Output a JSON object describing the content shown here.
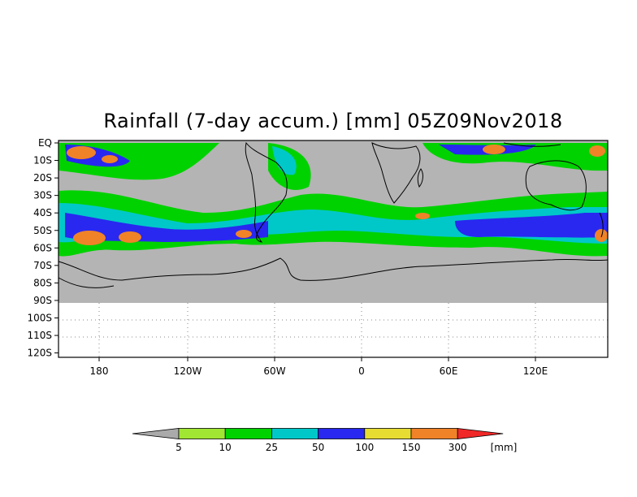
{
  "title": "Rainfall (7-day accum.) [mm] 05Z09Nov2018",
  "lat_labels": [
    "EQ",
    "10S",
    "20S",
    "30S",
    "40S",
    "50S",
    "60S",
    "70S",
    "80S",
    "90S",
    "100S",
    "110S",
    "120S"
  ],
  "lon_labels": [
    "180",
    "120W",
    "60W",
    "0",
    "60E",
    "120E"
  ],
  "colorbar": {
    "levels": [
      "5",
      "10",
      "25",
      "50",
      "100",
      "150",
      "300"
    ],
    "unit": "[mm]",
    "colors": [
      "#aaaaaa",
      "#a0e632",
      "#00d200",
      "#00c8c8",
      "#2828f0",
      "#e6dc32",
      "#f08228",
      "#f02828"
    ]
  },
  "colors": {
    "land_gray": "#b4b4b4",
    "coast": "#000000",
    "grid": "#888888"
  }
}
